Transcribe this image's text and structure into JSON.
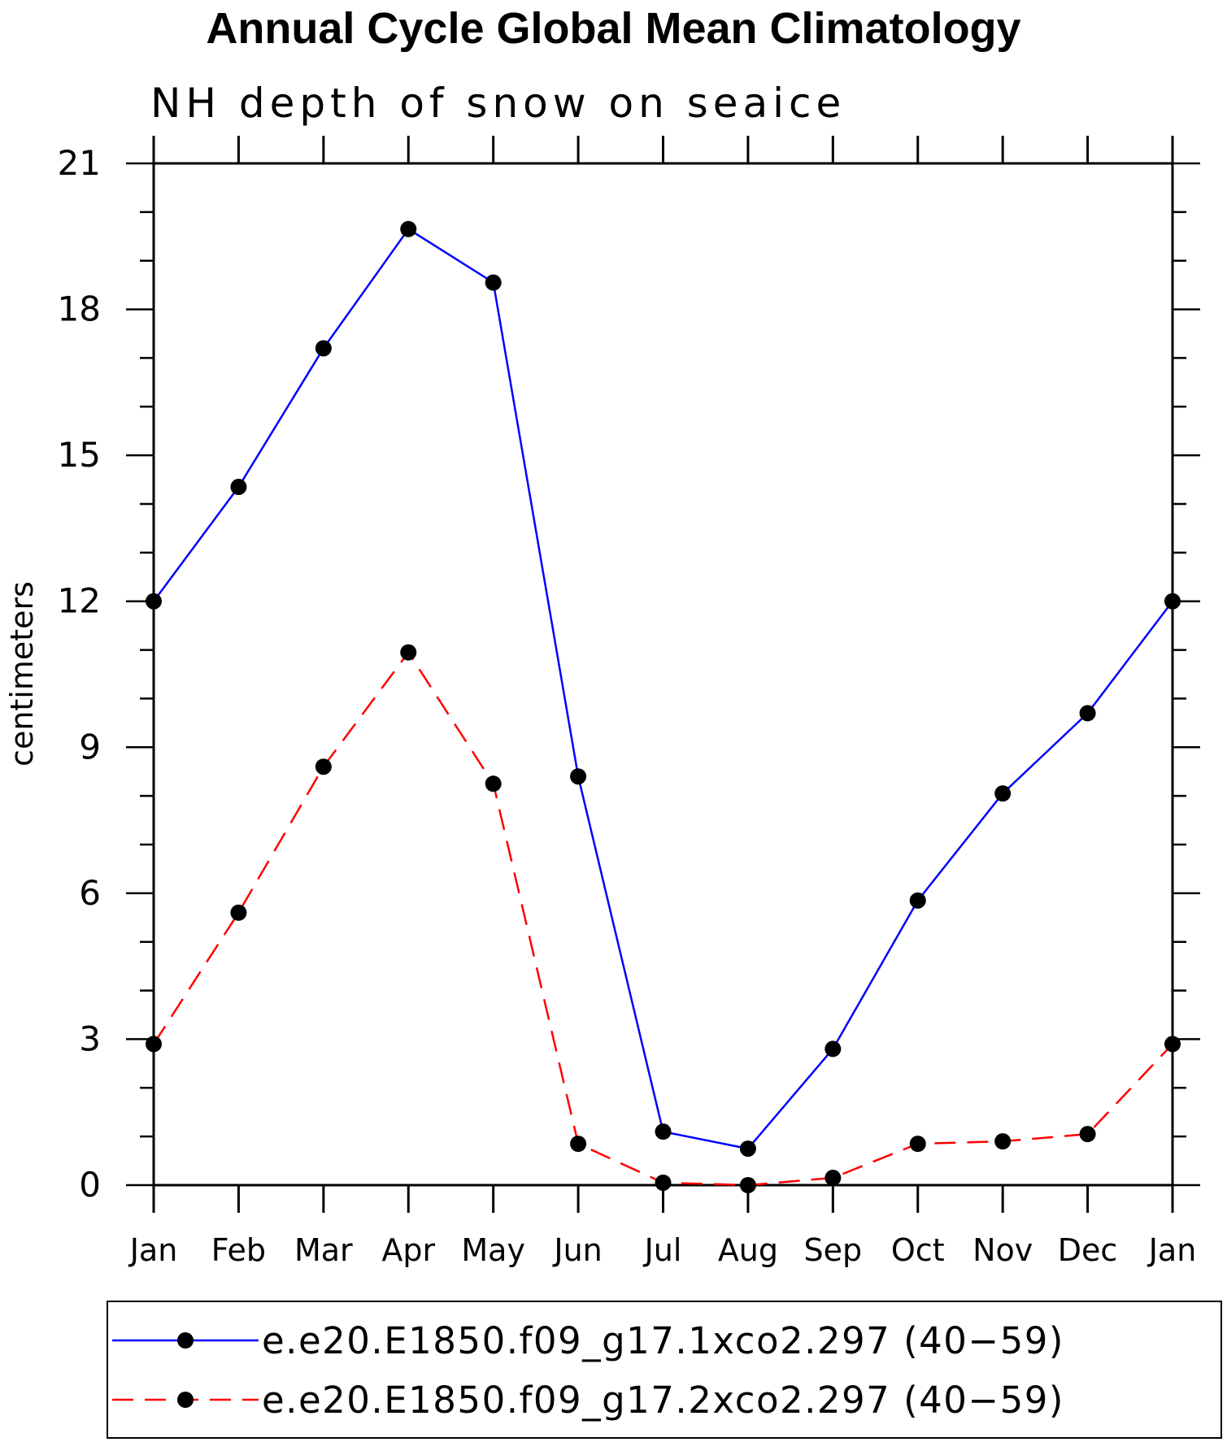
{
  "chart_data": {
    "type": "line",
    "title": "Annual Cycle Global Mean Climatology",
    "subtitle": "NH depth of snow on seaice",
    "xlabel": "",
    "ylabel": "centimeters",
    "categories": [
      "Jan",
      "Feb",
      "Mar",
      "Apr",
      "May",
      "Jun",
      "Jul",
      "Aug",
      "Sep",
      "Oct",
      "Nov",
      "Dec",
      "Jan"
    ],
    "ylim": [
      0,
      21
    ],
    "yticks": [
      0,
      3,
      6,
      9,
      12,
      15,
      18,
      21
    ],
    "yticks_minor_step": 1,
    "grid": false,
    "legend_position": "bottom",
    "series": [
      {
        "name": "e.e20.E1850.f09_g17.1xco2.297 (40−59)",
        "color": "#0000ff",
        "line_style": "solid",
        "marker": "filled-circle",
        "values": [
          12.0,
          14.35,
          17.2,
          19.65,
          18.55,
          8.4,
          1.1,
          0.75,
          2.8,
          5.85,
          8.05,
          9.7,
          12.0
        ]
      },
      {
        "name": "e.e20.E1850.f09_g17.2xco2.297 (40−59)",
        "color": "#ff0000",
        "line_style": "dashed",
        "marker": "filled-circle",
        "values": [
          2.9,
          5.6,
          8.6,
          10.95,
          8.25,
          0.85,
          0.05,
          0.0,
          0.15,
          0.85,
          0.9,
          1.05,
          2.9
        ]
      }
    ]
  }
}
